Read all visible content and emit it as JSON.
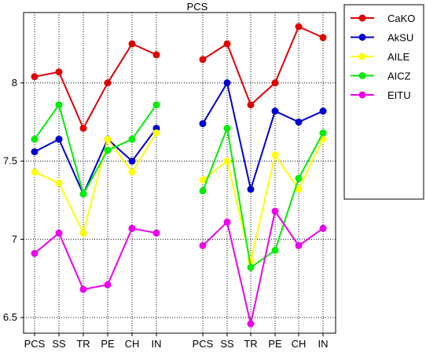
{
  "chart_data": {
    "type": "line",
    "title": "PCS",
    "ylim": [
      6.4,
      8.45
    ],
    "yticks": [
      6.5,
      7,
      7.5,
      8
    ],
    "ytick_labels": [
      "6.5",
      "7",
      "7.5",
      "8"
    ],
    "grid": true,
    "legend_position": "right",
    "panels": [
      {
        "categories": [
          "PCS",
          "SS",
          "TR",
          "PE",
          "CH",
          "IN"
        ]
      },
      {
        "categories": [
          "PCS",
          "SS",
          "TR",
          "PE",
          "CH",
          "IN"
        ]
      }
    ],
    "series": [
      {
        "name": "CaKO",
        "color": "#e00000",
        "panels": [
          [
            8.04,
            8.07,
            7.71,
            8.0,
            8.25,
            8.18
          ],
          [
            8.15,
            8.25,
            7.86,
            8.0,
            8.36,
            8.29
          ]
        ]
      },
      {
        "name": "AkSU",
        "color": "#0000d0",
        "panels": [
          [
            7.56,
            7.64,
            7.29,
            7.64,
            7.5,
            7.71
          ],
          [
            7.74,
            8.0,
            7.32,
            7.82,
            7.75,
            7.82
          ]
        ]
      },
      {
        "name": "AILE",
        "color": "#ffff00",
        "panels": [
          [
            7.43,
            7.36,
            7.04,
            7.64,
            7.43,
            7.68
          ],
          [
            7.38,
            7.5,
            6.86,
            7.54,
            7.32,
            7.64
          ]
        ]
      },
      {
        "name": "AICZ",
        "color": "#00ee00",
        "panels": [
          [
            7.64,
            7.86,
            7.29,
            7.57,
            7.64,
            7.86
          ],
          [
            7.31,
            7.71,
            6.82,
            6.93,
            7.39,
            7.68
          ]
        ]
      },
      {
        "name": "EITU",
        "color": "#ee00ee",
        "panels": [
          [
            6.91,
            7.04,
            6.68,
            6.71,
            7.07,
            7.04
          ],
          [
            6.96,
            7.11,
            6.46,
            7.18,
            6.96,
            7.07
          ]
        ]
      }
    ]
  }
}
